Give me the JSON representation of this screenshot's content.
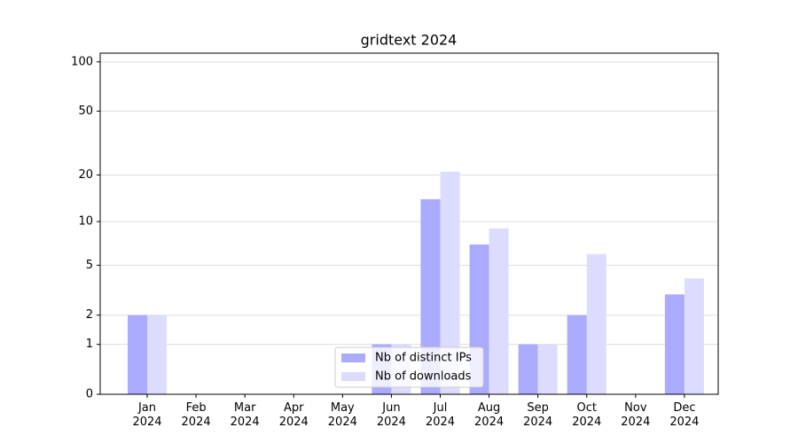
{
  "chart_data": {
    "type": "bar",
    "title": "gridtext 2024",
    "categories": [
      "Jan 2024",
      "Feb 2024",
      "Mar 2024",
      "Apr 2024",
      "May 2024",
      "Jun 2024",
      "Jul 2024",
      "Aug 2024",
      "Sep 2024",
      "Oct 2024",
      "Nov 2024",
      "Dec 2024"
    ],
    "series": [
      {
        "name": "Nb of distinct IPs",
        "color": "#aaaaff",
        "values": [
          2,
          0,
          0,
          0,
          0,
          1,
          14,
          7,
          1,
          2,
          0,
          3
        ]
      },
      {
        "name": "Nb of downloads",
        "color": "#dcdcff",
        "values": [
          2,
          0,
          0,
          0,
          0,
          1,
          21,
          9,
          1,
          6,
          0,
          4
        ]
      }
    ],
    "yscale": "log1p",
    "ylim": [
      0,
      113
    ],
    "yticks": [
      0,
      1,
      2,
      5,
      10,
      20,
      50,
      100
    ],
    "grid": true,
    "legend": "lower center"
  }
}
